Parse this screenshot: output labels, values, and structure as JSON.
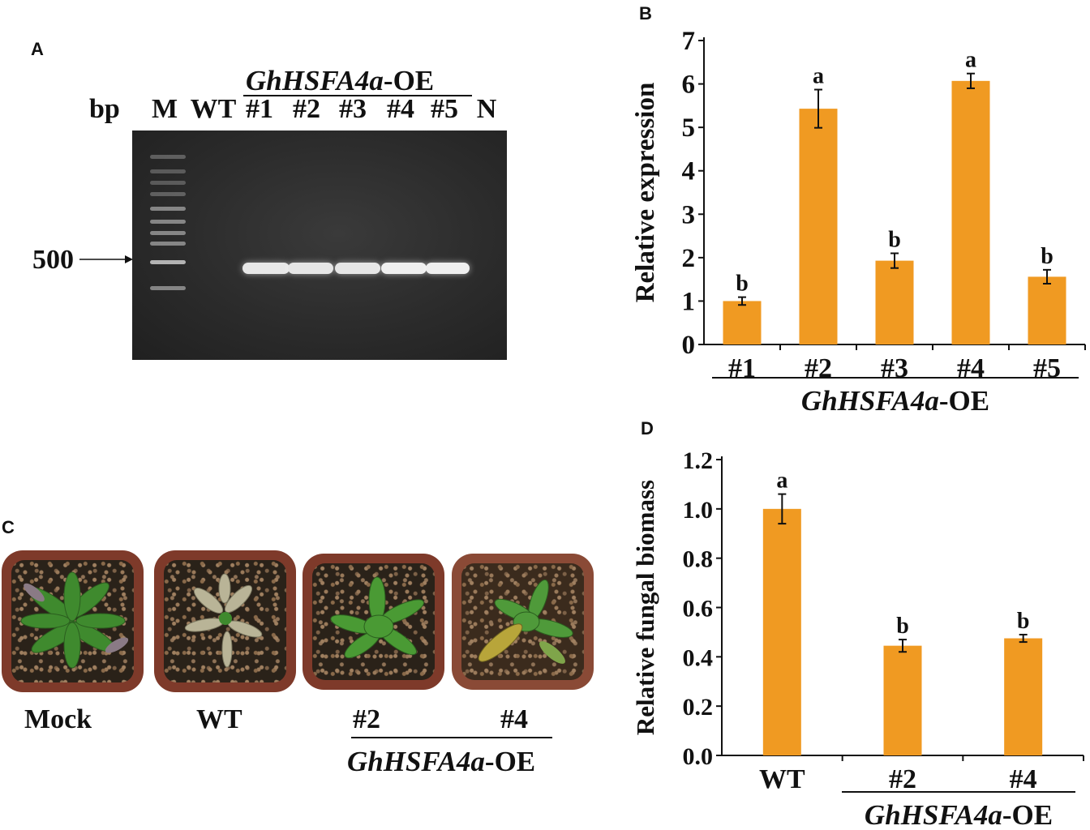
{
  "panels": {
    "A": {
      "letter": "A",
      "bp_label": "bp",
      "marker_label": "500",
      "gene_label_italic": "GhHSFA4a",
      "gene_label_suffix": "-OE",
      "lanes": [
        "M",
        "WT",
        "#1",
        "#2",
        "#3",
        "#4",
        "#5",
        "N"
      ]
    },
    "B": {
      "letter": "B"
    },
    "C": {
      "letter": "C",
      "pot_labels": [
        "Mock",
        "WT",
        "#2",
        "#4"
      ],
      "gene_label_italic": "GhHSFA4a",
      "gene_label_suffix": "-OE"
    },
    "D": {
      "letter": "D"
    }
  },
  "chart_data": [
    {
      "panel": "B",
      "type": "bar",
      "categories": [
        "#1",
        "#2",
        "#3",
        "#4",
        "#5"
      ],
      "values": [
        1.0,
        5.43,
        1.93,
        6.07,
        1.56
      ],
      "errors": [
        0.09,
        0.44,
        0.17,
        0.17,
        0.16
      ],
      "letters": [
        "b",
        "a",
        "b",
        "a",
        "b"
      ],
      "ylabel": "Relative expression",
      "ylim": [
        0,
        7
      ],
      "yticks": [
        "0",
        "1",
        "2",
        "3",
        "4",
        "5",
        "6",
        "7"
      ],
      "group_label_italic": "GhHSFA4a",
      "group_label_suffix": "-OE",
      "bar_color": "#f09a22"
    },
    {
      "panel": "D",
      "type": "bar",
      "categories": [
        "WT",
        "#2",
        "#4"
      ],
      "values": [
        1.0,
        0.445,
        0.475
      ],
      "errors": [
        0.06,
        0.025,
        0.015
      ],
      "letters": [
        "a",
        "b",
        "b"
      ],
      "ylabel": "Relative fungal biomass",
      "ylim": [
        0,
        1.2
      ],
      "yticks": [
        "0.0",
        "0.2",
        "0.4",
        "0.6",
        "0.8",
        "1.0",
        "1.2"
      ],
      "group_label_italic": "GhHSFA4a",
      "group_label_suffix": "-OE",
      "bar_color": "#f09a22"
    }
  ]
}
